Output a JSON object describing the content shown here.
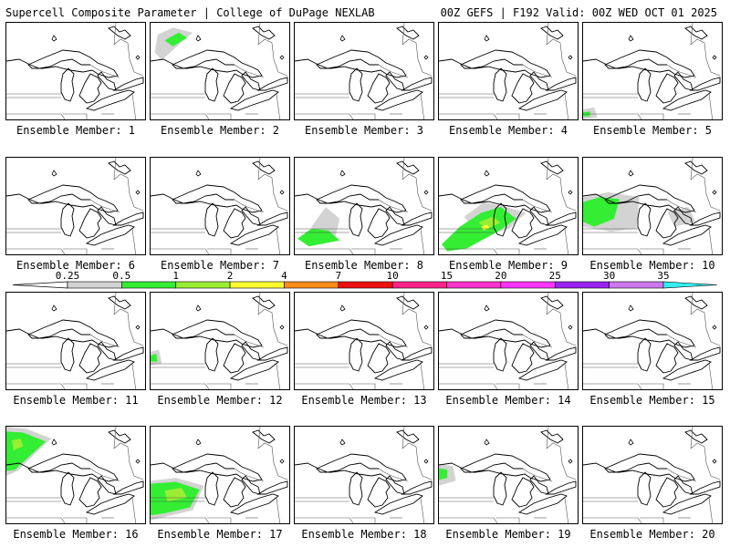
{
  "header": {
    "title": "Supercell Composite Parameter | College of DuPage NEXLAB",
    "valid": "00Z GEFS | F192 Valid: 00Z WED OCT 01 2025"
  },
  "legend": {
    "ticks": [
      "0.25",
      "0.5",
      "1",
      "2",
      "4",
      "7",
      "10",
      "15",
      "20",
      "25",
      "30",
      "35"
    ],
    "colors": [
      "#d3d3d3",
      "#33ee33",
      "#99ee33",
      "#ffff33",
      "#ff8c1a",
      "#ee1111",
      "#ff2288",
      "#ff33cc",
      "#ff33ff",
      "#9922ee",
      "#cc77ee",
      "#33eeee"
    ]
  },
  "members": [
    {
      "label": "Ensemble Member: 1",
      "blobs": []
    },
    {
      "label": "Ensemble Member: 2",
      "blobs": [
        {
          "c": 0,
          "pts": [
            [
              0.05,
              0.12
            ],
            [
              0.16,
              0.05
            ],
            [
              0.3,
              0.1
            ],
            [
              0.18,
              0.25
            ],
            [
              0.08,
              0.38
            ],
            [
              0.03,
              0.3
            ]
          ]
        },
        {
          "c": 1,
          "pts": [
            [
              0.1,
              0.18
            ],
            [
              0.2,
              0.1
            ],
            [
              0.26,
              0.15
            ],
            [
              0.16,
              0.24
            ]
          ]
        }
      ]
    },
    {
      "label": "Ensemble Member: 3",
      "blobs": []
    },
    {
      "label": "Ensemble Member: 4",
      "blobs": []
    },
    {
      "label": "Ensemble Member: 5",
      "blobs": [
        {
          "c": 0,
          "pts": [
            [
              0.0,
              0.88
            ],
            [
              0.08,
              0.86
            ],
            [
              0.1,
              0.96
            ],
            [
              0.0,
              0.98
            ]
          ]
        },
        {
          "c": 1,
          "pts": [
            [
              0.0,
              0.91
            ],
            [
              0.05,
              0.9
            ],
            [
              0.05,
              0.95
            ],
            [
              0.0,
              0.95
            ]
          ]
        }
      ]
    },
    {
      "label": "Ensemble Member: 6",
      "blobs": []
    },
    {
      "label": "Ensemble Member: 7",
      "blobs": []
    },
    {
      "label": "Ensemble Member: 8",
      "blobs": [
        {
          "c": 0,
          "pts": [
            [
              0.12,
              0.7
            ],
            [
              0.22,
              0.5
            ],
            [
              0.32,
              0.62
            ],
            [
              0.28,
              0.85
            ],
            [
              0.14,
              0.88
            ]
          ]
        },
        {
          "c": 1,
          "pts": [
            [
              0.02,
              0.82
            ],
            [
              0.12,
              0.72
            ],
            [
              0.24,
              0.74
            ],
            [
              0.32,
              0.84
            ],
            [
              0.1,
              0.9
            ]
          ]
        }
      ]
    },
    {
      "label": "Ensemble Member: 9",
      "blobs": [
        {
          "c": 0,
          "pts": [
            [
              0.18,
              0.6
            ],
            [
              0.32,
              0.45
            ],
            [
              0.48,
              0.5
            ],
            [
              0.62,
              0.56
            ],
            [
              0.5,
              0.72
            ],
            [
              0.3,
              0.8
            ]
          ]
        },
        {
          "c": 1,
          "pts": [
            [
              0.02,
              0.88
            ],
            [
              0.15,
              0.7
            ],
            [
              0.3,
              0.56
            ],
            [
              0.44,
              0.5
            ],
            [
              0.55,
              0.62
            ],
            [
              0.42,
              0.75
            ],
            [
              0.2,
              0.92
            ],
            [
              0.06,
              0.95
            ]
          ]
        },
        {
          "c": 2,
          "pts": [
            [
              0.28,
              0.66
            ],
            [
              0.38,
              0.6
            ],
            [
              0.44,
              0.66
            ],
            [
              0.34,
              0.72
            ]
          ]
        },
        {
          "c": 3,
          "pts": [
            [
              0.3,
              0.7
            ],
            [
              0.34,
              0.68
            ],
            [
              0.36,
              0.71
            ],
            [
              0.32,
              0.74
            ]
          ]
        }
      ]
    },
    {
      "label": "Ensemble Member: 10",
      "blobs": [
        {
          "c": 0,
          "pts": [
            [
              0.0,
              0.4
            ],
            [
              0.18,
              0.35
            ],
            [
              0.4,
              0.4
            ],
            [
              0.38,
              0.72
            ],
            [
              0.2,
              0.75
            ],
            [
              0.0,
              0.7
            ]
          ]
        },
        {
          "c": 0,
          "pts": [
            [
              0.6,
              0.55
            ],
            [
              0.75,
              0.5
            ],
            [
              0.8,
              0.65
            ],
            [
              0.65,
              0.7
            ]
          ]
        },
        {
          "c": 1,
          "pts": [
            [
              0.0,
              0.45
            ],
            [
              0.12,
              0.4
            ],
            [
              0.26,
              0.42
            ],
            [
              0.22,
              0.62
            ],
            [
              0.08,
              0.7
            ],
            [
              0.0,
              0.65
            ]
          ]
        }
      ]
    },
    {
      "label": "Ensemble Member: 11",
      "blobs": []
    },
    {
      "label": "Ensemble Member: 12",
      "blobs": [
        {
          "c": 0,
          "pts": [
            [
              0.0,
              0.6
            ],
            [
              0.06,
              0.58
            ],
            [
              0.08,
              0.72
            ],
            [
              0.0,
              0.74
            ]
          ]
        },
        {
          "c": 1,
          "pts": [
            [
              0.0,
              0.64
            ],
            [
              0.04,
              0.62
            ],
            [
              0.05,
              0.7
            ],
            [
              0.0,
              0.7
            ]
          ]
        }
      ]
    },
    {
      "label": "Ensemble Member: 13",
      "blobs": []
    },
    {
      "label": "Ensemble Member: 14",
      "blobs": []
    },
    {
      "label": "Ensemble Member: 15",
      "blobs": []
    },
    {
      "label": "Ensemble Member: 16",
      "blobs": [
        {
          "c": 0,
          "pts": [
            [
              0.0,
              0.0
            ],
            [
              0.14,
              0.02
            ],
            [
              0.32,
              0.12
            ],
            [
              0.2,
              0.28
            ],
            [
              0.08,
              0.45
            ],
            [
              0.0,
              0.5
            ]
          ]
        },
        {
          "c": 1,
          "pts": [
            [
              0.0,
              0.05
            ],
            [
              0.12,
              0.06
            ],
            [
              0.28,
              0.15
            ],
            [
              0.18,
              0.28
            ],
            [
              0.06,
              0.44
            ],
            [
              0.0,
              0.45
            ]
          ]
        },
        {
          "c": 2,
          "pts": [
            [
              0.04,
              0.14
            ],
            [
              0.1,
              0.12
            ],
            [
              0.12,
              0.2
            ],
            [
              0.05,
              0.24
            ]
          ]
        }
      ]
    },
    {
      "label": "Ensemble Member: 17",
      "blobs": [
        {
          "c": 0,
          "pts": [
            [
              0.0,
              0.55
            ],
            [
              0.18,
              0.52
            ],
            [
              0.38,
              0.6
            ],
            [
              0.3,
              0.85
            ],
            [
              0.0,
              0.95
            ]
          ]
        },
        {
          "c": 1,
          "pts": [
            [
              0.0,
              0.58
            ],
            [
              0.18,
              0.56
            ],
            [
              0.35,
              0.64
            ],
            [
              0.28,
              0.82
            ],
            [
              0.1,
              0.88
            ],
            [
              0.0,
              0.9
            ]
          ]
        },
        {
          "c": 2,
          "pts": [
            [
              0.1,
              0.65
            ],
            [
              0.22,
              0.62
            ],
            [
              0.26,
              0.72
            ],
            [
              0.12,
              0.76
            ]
          ]
        }
      ]
    },
    {
      "label": "Ensemble Member: 18",
      "blobs": []
    },
    {
      "label": "Ensemble Member: 19",
      "blobs": [
        {
          "c": 0,
          "pts": [
            [
              0.0,
              0.38
            ],
            [
              0.1,
              0.4
            ],
            [
              0.12,
              0.55
            ],
            [
              0.0,
              0.6
            ]
          ]
        },
        {
          "c": 1,
          "pts": [
            [
              0.0,
              0.42
            ],
            [
              0.06,
              0.44
            ],
            [
              0.06,
              0.52
            ],
            [
              0.0,
              0.54
            ]
          ]
        }
      ]
    },
    {
      "label": "Ensemble Member: 20",
      "blobs": []
    }
  ]
}
